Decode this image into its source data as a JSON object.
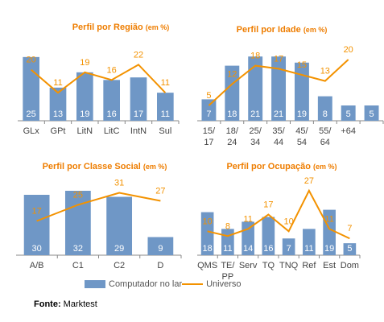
{
  "colors": {
    "bar": "#6f97c6",
    "line": "#f39200",
    "title": "#ee7d00",
    "axis": "#888888",
    "tick": "#444444",
    "bar_label": "#ffffff"
  },
  "chart_data": [
    {
      "type": "bar",
      "title": "Perfil por Região",
      "unit": "(em %)",
      "categories": [
        "GLx",
        "GPt",
        "LitN",
        "LitC",
        "IntN",
        "Sul"
      ],
      "series": [
        {
          "name": "Computador no lar",
          "type": "bar",
          "values": [
            25,
            13,
            19,
            16,
            17,
            11
          ]
        },
        {
          "name": "Universo",
          "type": "line",
          "values": [
            20,
            11,
            19,
            16,
            22,
            11
          ]
        }
      ],
      "ylim": [
        0,
        30
      ]
    },
    {
      "type": "bar",
      "title": "Perfil por Idade",
      "unit": "(em %)",
      "categories": [
        "15/ 17",
        "18/ 24",
        "25/ 34",
        "35/ 44",
        "45/ 54",
        "55/ 64",
        "+64"
      ],
      "series": [
        {
          "name": "Computador no lar",
          "type": "bar",
          "values": [
            7,
            18,
            21,
            21,
            19,
            8,
            5
          ]
        },
        {
          "name": "Universo",
          "type": "line",
          "values": [
            5,
            12,
            18,
            17,
            15,
            13,
            20
          ]
        }
      ],
      "extra_bar_values": [
        5
      ],
      "ylim": [
        0,
        25
      ]
    },
    {
      "type": "bar",
      "title": "Perfil por Classe Social",
      "unit": "(em %)",
      "categories": [
        "A/B",
        "C1",
        "C2",
        "D"
      ],
      "series": [
        {
          "name": "Computador no lar",
          "type": "bar",
          "values": [
            30,
            32,
            29,
            9
          ]
        },
        {
          "name": "Universo",
          "type": "line",
          "values": [
            17,
            25,
            31,
            27
          ]
        }
      ],
      "ylim": [
        0,
        38
      ]
    },
    {
      "type": "bar",
      "title": "Perfil por Ocupação",
      "unit": "(em %)",
      "categories": [
        "QMS",
        "TE/ PP",
        "Serv",
        "TQ",
        "TNQ",
        "Ref",
        "Est",
        "Dom"
      ],
      "series": [
        {
          "name": "Computador no lar",
          "type": "bar",
          "values": [
            18,
            11,
            14,
            16,
            7,
            11,
            19,
            5
          ]
        },
        {
          "name": "Universo",
          "type": "line",
          "values": [
            10,
            8,
            11,
            17,
            10,
            27,
            11,
            7
          ]
        }
      ],
      "ylim": [
        0,
        32
      ]
    }
  ],
  "legend": {
    "bar_label": "Computador no lar",
    "line_label": "Universo"
  },
  "source": {
    "label": "Fonte:",
    "text": "Marktest"
  }
}
